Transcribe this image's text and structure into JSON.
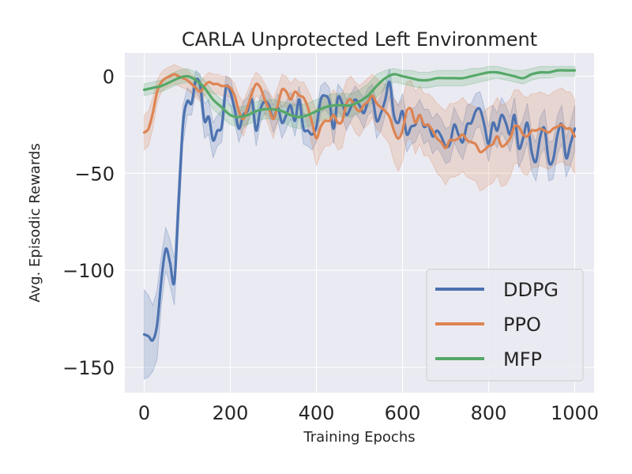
{
  "chart_data": {
    "type": "line",
    "title": "CARLA Unprotected Left Environment",
    "xlabel": "Training Epochs",
    "ylabel": "Avg. Episodic Rewards",
    "xlim": [
      -45,
      1045
    ],
    "ylim": [
      -163,
      12
    ],
    "xticks": [
      0,
      200,
      400,
      600,
      800,
      1000
    ],
    "xtick_labels": [
      "0",
      "200",
      "400",
      "600",
      "800",
      "1000"
    ],
    "yticks": [
      0,
      -50,
      -100,
      -150
    ],
    "ytick_labels": [
      "0",
      "−50",
      "−100",
      "−150"
    ],
    "grid": true,
    "legend_position": "lower-right",
    "series": [
      {
        "name": "DDPG",
        "color": "#4c72b0",
        "x": [
          0,
          10,
          20,
          30,
          40,
          50,
          60,
          70,
          80,
          90,
          100,
          110,
          120,
          130,
          140,
          150,
          160,
          170,
          180,
          190,
          200,
          210,
          220,
          230,
          240,
          250,
          260,
          270,
          280,
          290,
          300,
          310,
          320,
          330,
          340,
          350,
          360,
          370,
          380,
          390,
          400,
          410,
          420,
          430,
          440,
          450,
          460,
          470,
          480,
          490,
          500,
          510,
          520,
          530,
          540,
          550,
          560,
          570,
          580,
          590,
          600,
          610,
          620,
          630,
          640,
          650,
          660,
          670,
          680,
          690,
          700,
          710,
          720,
          730,
          740,
          750,
          760,
          770,
          780,
          790,
          800,
          810,
          820,
          830,
          840,
          850,
          860,
          870,
          880,
          890,
          900,
          910,
          920,
          930,
          940,
          950,
          960,
          970,
          980,
          990,
          1000
        ],
        "y": [
          -133,
          -134,
          -136,
          -128,
          -105,
          -89,
          -96,
          -106,
          -65,
          -25,
          -13,
          -14,
          -2,
          -5,
          -23,
          -21,
          -33,
          -28,
          -26,
          -6,
          -8,
          -17,
          -27,
          -20,
          -18,
          -12,
          -28,
          -17,
          -13,
          -15,
          -22,
          -16,
          -24,
          -20,
          -15,
          -23,
          -12,
          -27,
          -28,
          -30,
          -26,
          -12,
          -10,
          -13,
          -27,
          -11,
          -14,
          -20,
          -16,
          -12,
          -15,
          -19,
          -13,
          -11,
          -23,
          -19,
          -12,
          -3,
          -20,
          -24,
          -18,
          -30,
          -26,
          -25,
          -20,
          -26,
          -25,
          -31,
          -28,
          -31,
          -36,
          -35,
          -25,
          -30,
          -34,
          -25,
          -24,
          -18,
          -17,
          -25,
          -35,
          -24,
          -28,
          -20,
          -24,
          -30,
          -20,
          -37,
          -32,
          -24,
          -39,
          -44,
          -31,
          -27,
          -44,
          -43,
          -30,
          -25,
          -42,
          -35,
          -27
        ],
        "band_upper": [
          -110,
          -113,
          -118,
          -110,
          -92,
          -78,
          -84,
          -94,
          -52,
          -15,
          -6,
          -8,
          3,
          1,
          -14,
          -12,
          -24,
          -20,
          -18,
          0,
          -1,
          -10,
          -20,
          -13,
          -11,
          -6,
          -20,
          -10,
          -7,
          -9,
          -15,
          -9,
          -16,
          -13,
          -8,
          -15,
          -5,
          -19,
          -20,
          -22,
          -18,
          -5,
          -3,
          -6,
          -19,
          -4,
          -7,
          -12,
          -9,
          -5,
          -8,
          -11,
          -6,
          -4,
          -14,
          -10,
          -4,
          4,
          -11,
          -15,
          -9,
          -21,
          -17,
          -16,
          -12,
          -17,
          -17,
          -22,
          -19,
          -22,
          -27,
          -26,
          -16,
          -21,
          -25,
          -15,
          -14,
          -9,
          -8,
          -16,
          -26,
          -15,
          -19,
          -11,
          -15,
          -21,
          -11,
          -27,
          -22,
          -14,
          -29,
          -34,
          -21,
          -17,
          -34,
          -33,
          -20,
          -15,
          -32,
          -24,
          -15
        ],
        "band_lower": [
          -156,
          -155,
          -152,
          -146,
          -118,
          -100,
          -108,
          -118,
          -78,
          -35,
          -20,
          -20,
          -8,
          -12,
          -32,
          -30,
          -42,
          -36,
          -34,
          -12,
          -15,
          -24,
          -34,
          -27,
          -25,
          -18,
          -36,
          -24,
          -19,
          -21,
          -29,
          -23,
          -32,
          -27,
          -22,
          -31,
          -19,
          -35,
          -36,
          -38,
          -34,
          -19,
          -17,
          -20,
          -35,
          -18,
          -21,
          -28,
          -23,
          -19,
          -22,
          -27,
          -20,
          -18,
          -32,
          -28,
          -20,
          -10,
          -29,
          -33,
          -27,
          -39,
          -35,
          -34,
          -28,
          -35,
          -33,
          -40,
          -37,
          -40,
          -45,
          -44,
          -34,
          -39,
          -43,
          -35,
          -34,
          -27,
          -26,
          -34,
          -44,
          -33,
          -37,
          -29,
          -33,
          -39,
          -29,
          -47,
          -42,
          -34,
          -49,
          -54,
          -41,
          -37,
          -54,
          -53,
          -40,
          -35,
          -52,
          -46,
          -39
        ]
      },
      {
        "name": "PPO",
        "color": "#dd8452",
        "x": [
          0,
          10,
          20,
          30,
          40,
          50,
          60,
          70,
          80,
          90,
          100,
          110,
          120,
          130,
          140,
          150,
          160,
          170,
          180,
          190,
          200,
          210,
          220,
          230,
          240,
          250,
          260,
          270,
          280,
          290,
          300,
          310,
          320,
          330,
          340,
          350,
          360,
          370,
          380,
          390,
          400,
          410,
          420,
          430,
          440,
          450,
          460,
          470,
          480,
          490,
          500,
          510,
          520,
          530,
          540,
          550,
          560,
          570,
          580,
          590,
          600,
          610,
          620,
          630,
          640,
          650,
          660,
          670,
          680,
          690,
          700,
          710,
          720,
          730,
          740,
          750,
          760,
          770,
          780,
          790,
          800,
          810,
          820,
          830,
          840,
          850,
          860,
          870,
          880,
          890,
          900,
          910,
          920,
          930,
          940,
          950,
          960,
          970,
          980,
          990,
          1000
        ],
        "y": [
          -29,
          -27,
          -19,
          -8,
          -3,
          -1,
          0,
          1,
          0,
          -1,
          -2,
          -4,
          -6,
          -8,
          -5,
          -3,
          -4,
          -4,
          -5,
          -5,
          -6,
          -10,
          -18,
          -22,
          -16,
          -9,
          -4,
          -6,
          -12,
          -17,
          -22,
          -15,
          -7,
          -8,
          -12,
          -8,
          -10,
          -11,
          -16,
          -24,
          -32,
          -26,
          -23,
          -23,
          -20,
          -24,
          -23,
          -14,
          -12,
          -16,
          -18,
          -15,
          -13,
          -10,
          -14,
          -16,
          -18,
          -21,
          -28,
          -32,
          -28,
          -18,
          -17,
          -24,
          -20,
          -25,
          -25,
          -28,
          -32,
          -34,
          -37,
          -33,
          -33,
          -32,
          -30,
          -33,
          -34,
          -35,
          -39,
          -38,
          -36,
          -35,
          -31,
          -36,
          -35,
          -32,
          -26,
          -26,
          -30,
          -31,
          -28,
          -28,
          -27,
          -28,
          -29,
          -27,
          -26,
          -25,
          -27,
          -27,
          -31
        ],
        "band_upper": [
          -20,
          -18,
          -11,
          -2,
          2,
          4,
          5,
          6,
          5,
          4,
          3,
          1,
          -1,
          -3,
          0,
          2,
          1,
          1,
          0,
          0,
          -1,
          -4,
          -10,
          -13,
          -8,
          -2,
          2,
          0,
          -4,
          -8,
          -12,
          -6,
          1,
          0,
          -4,
          -1,
          -3,
          -3,
          -7,
          -12,
          -18,
          -12,
          -10,
          -10,
          -7,
          -10,
          -9,
          -2,
          0,
          -3,
          -5,
          -3,
          -1,
          1,
          -1,
          -3,
          -4,
          -7,
          -12,
          -15,
          -12,
          -3,
          -2,
          -8,
          -5,
          -9,
          -9,
          -11,
          -14,
          -16,
          -18,
          -14,
          -14,
          -13,
          -11,
          -14,
          -15,
          -16,
          -19,
          -18,
          -16,
          -15,
          -11,
          -15,
          -14,
          -12,
          -7,
          -7,
          -10,
          -11,
          -9,
          -9,
          -8,
          -9,
          -10,
          -8,
          -7,
          -6,
          -8,
          -8,
          -12
        ],
        "band_lower": [
          -38,
          -36,
          -27,
          -14,
          -8,
          -6,
          -5,
          -4,
          -5,
          -6,
          -7,
          -9,
          -11,
          -13,
          -10,
          -8,
          -9,
          -9,
          -10,
          -10,
          -11,
          -16,
          -26,
          -31,
          -24,
          -16,
          -10,
          -12,
          -20,
          -26,
          -32,
          -24,
          -15,
          -16,
          -20,
          -15,
          -17,
          -19,
          -25,
          -36,
          -46,
          -40,
          -36,
          -36,
          -33,
          -38,
          -37,
          -26,
          -24,
          -29,
          -31,
          -27,
          -25,
          -21,
          -27,
          -29,
          -32,
          -35,
          -44,
          -49,
          -44,
          -33,
          -32,
          -40,
          -35,
          -41,
          -41,
          -45,
          -50,
          -52,
          -56,
          -52,
          -52,
          -51,
          -49,
          -52,
          -53,
          -54,
          -59,
          -58,
          -56,
          -55,
          -51,
          -57,
          -56,
          -52,
          -45,
          -45,
          -50,
          -51,
          -47,
          -47,
          -46,
          -47,
          -48,
          -46,
          -45,
          -44,
          -46,
          -46,
          -50
        ]
      },
      {
        "name": "MFP",
        "color": "#55a868",
        "x": [
          0,
          20,
          40,
          60,
          80,
          100,
          120,
          140,
          160,
          180,
          200,
          220,
          240,
          260,
          280,
          300,
          320,
          340,
          360,
          380,
          400,
          420,
          440,
          460,
          480,
          500,
          520,
          540,
          560,
          580,
          600,
          620,
          640,
          660,
          680,
          700,
          720,
          740,
          760,
          780,
          800,
          820,
          840,
          860,
          880,
          900,
          920,
          940,
          960,
          980,
          1000
        ],
        "y": [
          -7,
          -6,
          -5,
          -3,
          -1,
          0,
          -2,
          -6,
          -12,
          -16,
          -20,
          -21,
          -20,
          -18,
          -17,
          -17,
          -18,
          -20,
          -21,
          -20,
          -18,
          -16,
          -15,
          -15,
          -15,
          -13,
          -10,
          -5,
          -1,
          1,
          0,
          -1,
          -2,
          -2,
          -1,
          -1,
          -1,
          -1,
          0,
          1,
          2,
          2,
          1,
          0,
          -1,
          1,
          2,
          2,
          3,
          3,
          3
        ],
        "band_upper": [
          -4,
          -3,
          -2,
          1,
          3,
          4,
          2,
          -2,
          -8,
          -12,
          -15,
          -16,
          -15,
          -13,
          -12,
          -12,
          -13,
          -14,
          -15,
          -14,
          -12,
          -10,
          -9,
          -9,
          -9,
          -7,
          -4,
          1,
          3,
          4,
          3,
          3,
          2,
          2,
          3,
          3,
          3,
          3,
          4,
          4,
          5,
          5,
          4,
          3,
          3,
          4,
          5,
          5,
          5,
          5,
          5
        ],
        "band_lower": [
          -10,
          -9,
          -8,
          -6,
          -4,
          -3,
          -6,
          -10,
          -17,
          -21,
          -25,
          -26,
          -25,
          -23,
          -22,
          -22,
          -23,
          -26,
          -27,
          -26,
          -24,
          -22,
          -21,
          -21,
          -21,
          -19,
          -16,
          -11,
          -6,
          -3,
          -4,
          -5,
          -6,
          -6,
          -5,
          -5,
          -5,
          -5,
          -4,
          -3,
          -2,
          -1,
          -2,
          -3,
          -4,
          -2,
          -1,
          -1,
          0,
          0,
          0
        ]
      }
    ]
  }
}
